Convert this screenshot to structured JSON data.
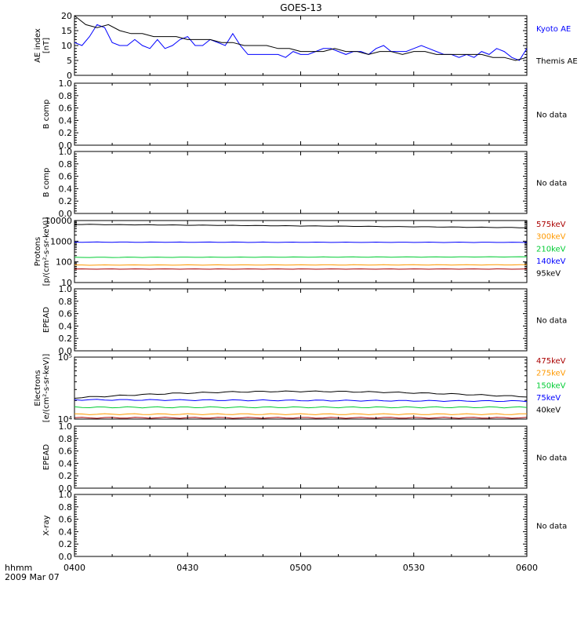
{
  "title": "GOES-13",
  "footer": {
    "line1": "hhmm",
    "line2": "2009 Mar 07"
  },
  "time_ticks": [
    "0400",
    "0430",
    "0500",
    "0530",
    "0600"
  ],
  "no_data_label": "No data",
  "colors": {
    "axis": "#000000",
    "blue": "#0000ff",
    "black": "#000000",
    "red": "#aa0000",
    "orange": "#ff9900",
    "green": "#00cc33"
  },
  "chart_data": [
    {
      "id": "ae",
      "type": "line",
      "ylabel": [
        "AE index",
        "[nT]"
      ],
      "ylim": [
        0,
        20
      ],
      "yticks": [
        "0",
        "5",
        "10",
        "15",
        "20"
      ],
      "x_range_minutes": [
        0,
        120
      ],
      "series": [
        {
          "name": "Kyoto AE",
          "color": "blue",
          "x": [
            0,
            2,
            4,
            6,
            8,
            10,
            12,
            14,
            16,
            18,
            20,
            22,
            24,
            26,
            28,
            30,
            32,
            34,
            36,
            38,
            40,
            42,
            44,
            46,
            48,
            50,
            52,
            54,
            56,
            58,
            60,
            62,
            64,
            66,
            68,
            70,
            72,
            74,
            76,
            78,
            80,
            82,
            84,
            86,
            88,
            90,
            92,
            94,
            96,
            98,
            100,
            102,
            104,
            106,
            108,
            110,
            112,
            114,
            116,
            118,
            120
          ],
          "y": [
            11,
            10,
            13,
            17,
            16,
            11,
            10,
            10,
            12,
            10,
            9,
            12,
            9,
            10,
            12,
            13,
            10,
            10,
            12,
            11,
            10,
            14,
            10,
            7,
            7,
            7,
            7,
            7,
            6,
            8,
            7,
            7,
            8,
            9,
            9,
            8,
            7,
            8,
            8,
            7,
            9,
            10,
            8,
            8,
            8,
            9,
            10,
            9,
            8,
            7,
            7,
            6,
            7,
            6,
            8,
            7,
            9,
            8,
            6,
            5,
            9
          ]
        },
        {
          "name": "Themis AE",
          "color": "black",
          "x": [
            0,
            3,
            6,
            9,
            12,
            15,
            18,
            21,
            24,
            27,
            30,
            33,
            36,
            39,
            42,
            45,
            48,
            51,
            54,
            57,
            60,
            63,
            66,
            69,
            72,
            75,
            78,
            81,
            84,
            87,
            90,
            93,
            96,
            99,
            102,
            105,
            108,
            111,
            114,
            117,
            120
          ],
          "y": [
            20,
            17,
            16,
            17,
            15,
            14,
            14,
            13,
            13,
            13,
            12,
            12,
            12,
            11,
            11,
            10,
            10,
            10,
            9,
            9,
            8,
            8,
            8,
            9,
            8,
            8,
            7,
            8,
            8,
            7,
            8,
            8,
            7,
            7,
            7,
            7,
            7,
            6,
            6,
            5,
            6
          ]
        }
      ]
    },
    {
      "id": "b1",
      "type": "line",
      "ylabel": [
        "B comp"
      ],
      "ylim": [
        0,
        1
      ],
      "yticks": [
        "0.0",
        "0.2",
        "0.4",
        "0.6",
        "0.8",
        "1.0"
      ],
      "no_data": true
    },
    {
      "id": "b2",
      "type": "line",
      "ylabel": [
        "B comp"
      ],
      "ylim": [
        0,
        1
      ],
      "yticks": [
        "0.0",
        "0.2",
        "0.4",
        "0.6",
        "0.8",
        "1.0"
      ],
      "no_data": true
    },
    {
      "id": "protons",
      "type": "line",
      "log": true,
      "ylabel": [
        "Protons",
        "[p/(cm²-s-sr-keV)]"
      ],
      "ylim": [
        10,
        10000
      ],
      "yticks": [
        "10",
        "100",
        "1000",
        "10000"
      ],
      "yticks_values": [
        10,
        100,
        1000,
        10000
      ],
      "series": [
        {
          "name": "575keV",
          "color": "red",
          "start": 45,
          "end": 45
        },
        {
          "name": "300keV",
          "color": "orange",
          "start": 70,
          "end": 72
        },
        {
          "name": "210keV",
          "color": "green",
          "start": 165,
          "end": 175
        },
        {
          "name": "140keV",
          "color": "blue",
          "start": 900,
          "end": 880
        },
        {
          "name": "95keV",
          "color": "black",
          "start": 6500,
          "end": 4500
        }
      ]
    },
    {
      "id": "epead1",
      "type": "line",
      "ylabel": [
        "EPEAD"
      ],
      "ylim": [
        0,
        1
      ],
      "yticks": [
        "0.0",
        "0.2",
        "0.4",
        "0.6",
        "0.8",
        "1.0"
      ],
      "no_data": true
    },
    {
      "id": "electrons",
      "type": "line",
      "log": true,
      "ylabel": [
        "Electrons",
        "[e/(cm²-s-sr-keV)]"
      ],
      "ylim": [
        10000,
        100000
      ],
      "yticks": [
        "10⁴",
        "10⁵"
      ],
      "yticks_values": [
        10000,
        100000
      ],
      "series": [
        {
          "name": "475keV",
          "color": "red",
          "start": 10500,
          "end": 10500
        },
        {
          "name": "275keV",
          "color": "orange",
          "start": 12000,
          "end": 12000
        },
        {
          "name": "150keV",
          "color": "green",
          "start": 15500,
          "end": 15500
        },
        {
          "name": "75keV",
          "color": "blue",
          "start": 20500,
          "end": 19500
        },
        {
          "name": "40keV",
          "color": "black",
          "start": 22000,
          "end": 23000,
          "peak": 28000
        }
      ]
    },
    {
      "id": "epead2",
      "type": "line",
      "ylabel": [
        "EPEAD"
      ],
      "ylim": [
        0,
        1
      ],
      "yticks": [
        "0.0",
        "0.2",
        "0.4",
        "0.6",
        "0.8",
        "1.0"
      ],
      "no_data": true
    },
    {
      "id": "xray",
      "type": "line",
      "ylabel": [
        "X-ray"
      ],
      "ylim": [
        0,
        1
      ],
      "yticks": [
        "0.0",
        "0.2",
        "0.4",
        "0.6",
        "0.8",
        "1.0"
      ],
      "no_data": true
    }
  ]
}
